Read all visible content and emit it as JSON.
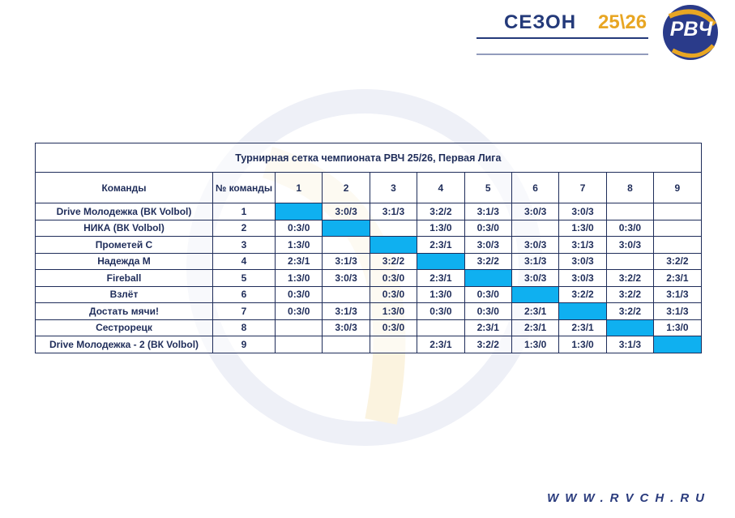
{
  "header": {
    "season": "СЕЗОН",
    "year": "25\\26",
    "logo": "РВЧ"
  },
  "table": {
    "title": "Турнирная сетка чемпионата РВЧ 25/26, Первая Лига",
    "columns": [
      "Команды",
      "№ команды",
      "1",
      "2",
      "3",
      "4",
      "5",
      "6",
      "7",
      "8",
      "9"
    ],
    "rows": [
      [
        "Drive Молодежка (ВК Volbol)",
        "1",
        null,
        "3:0/3",
        "3:1/3",
        "3:2/2",
        "3:1/3",
        "3:0/3",
        "3:0/3",
        null,
        null
      ],
      [
        "НИКА (ВК Volbol)",
        "2",
        "0:3/0",
        null,
        null,
        "1:3/0",
        "0:3/0",
        null,
        "1:3/0",
        "0:3/0",
        null
      ],
      [
        "Прометей С",
        "3",
        "1:3/0",
        null,
        null,
        "2:3/1",
        "3:0/3",
        "3:0/3",
        "3:1/3",
        "3:0/3",
        null
      ],
      [
        "Надежда М",
        "4",
        "2:3/1",
        "3:1/3",
        "3:2/2",
        null,
        "3:2/2",
        "3:1/3",
        "3:0/3",
        null,
        "3:2/2"
      ],
      [
        "Fireball",
        "5",
        "1:3/0",
        "3:0/3",
        "0:3/0",
        "2:3/1",
        null,
        "3:0/3",
        "3:0/3",
        "3:2/2",
        "2:3/1"
      ],
      [
        "Взлёт",
        "6",
        "0:3/0",
        null,
        "0:3/0",
        "1:3/0",
        "0:3/0",
        null,
        "3:2/2",
        "3:2/2",
        "3:1/3"
      ],
      [
        "Достать мячи!",
        "7",
        "0:3/0",
        "3:1/3",
        "1:3/0",
        "0:3/0",
        "0:3/0",
        "2:3/1",
        null,
        "3:2/2",
        "3:1/3"
      ],
      [
        "Сестрорецк",
        "8",
        null,
        "3:0/3",
        "0:3/0",
        null,
        "2:3/1",
        "2:3/1",
        "2:3/1",
        null,
        "1:3/0"
      ],
      [
        "Drive Молодежка - 2 (ВК Volbol)",
        "9",
        null,
        null,
        null,
        "2:3/1",
        "3:2/2",
        "1:3/0",
        "1:3/0",
        "3:1/3",
        null
      ]
    ]
  },
  "footer": {
    "site": "WWW.RVCH.RU"
  }
}
